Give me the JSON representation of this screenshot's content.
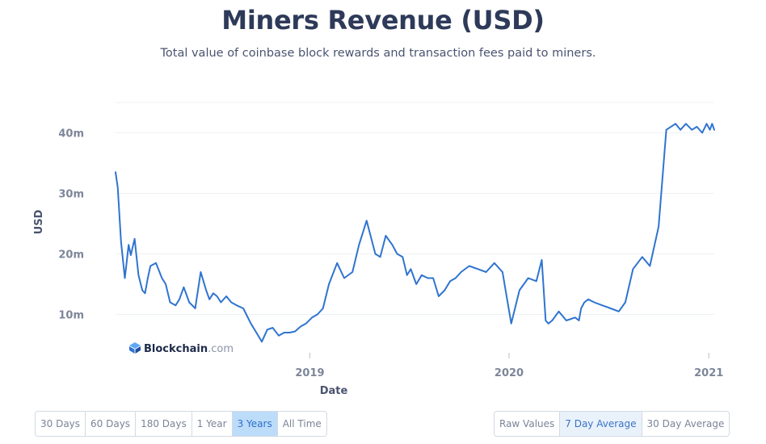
{
  "header": {
    "title": "Miners Revenue (USD)",
    "subtitle": "Total value of coinbase block rewards and transaction fees paid to miners."
  },
  "watermark": {
    "brand_bold": "Blockchain",
    "brand_light": ".com"
  },
  "chart_data": {
    "type": "line",
    "title": "Miners Revenue (USD)",
    "subtitle": "Total value of coinbase block rewards and transaction fees paid to miners.",
    "xlabel": "Date",
    "ylabel": "USD",
    "x_ticks": [
      "2019",
      "2020",
      "2021"
    ],
    "y_ticks": [
      "10m",
      "20m",
      "30m",
      "40m"
    ],
    "ylim": [
      0,
      45000000
    ],
    "grid": true,
    "line_color": "#2f74d0",
    "series": [
      {
        "x": [
          "2018-01-10",
          "2018-01-14",
          "2018-01-20",
          "2018-01-27",
          "2018-02-03",
          "2018-02-07",
          "2018-02-14",
          "2018-02-21",
          "2018-02-28",
          "2018-03-05",
          "2018-03-10",
          "2018-03-15",
          "2018-03-25",
          "2018-04-05",
          "2018-04-12",
          "2018-04-20",
          "2018-04-30",
          "2018-05-07",
          "2018-05-15",
          "2018-05-25",
          "2018-06-05",
          "2018-06-15",
          "2018-06-25",
          "2018-07-01",
          "2018-07-08",
          "2018-07-15",
          "2018-07-22",
          "2018-08-01",
          "2018-08-10",
          "2018-08-20",
          "2018-09-01",
          "2018-09-15",
          "2018-09-25",
          "2018-10-05",
          "2018-10-15",
          "2018-10-25",
          "2018-11-05",
          "2018-11-15",
          "2018-11-25",
          "2018-12-05",
          "2018-12-15",
          "2018-12-25",
          "2019-01-05",
          "2019-01-15",
          "2019-01-25",
          "2019-02-05",
          "2019-02-20",
          "2019-03-05",
          "2019-03-20",
          "2019-04-01",
          "2019-04-15",
          "2019-05-01",
          "2019-05-10",
          "2019-05-20",
          "2019-06-01",
          "2019-06-10",
          "2019-06-20",
          "2019-06-28",
          "2019-07-05",
          "2019-07-15",
          "2019-07-25",
          "2019-08-05",
          "2019-08-15",
          "2019-08-25",
          "2019-09-05",
          "2019-09-15",
          "2019-09-25",
          "2019-10-05",
          "2019-10-20",
          "2019-11-05",
          "2019-11-20",
          "2019-12-05",
          "2019-12-20",
          "2020-01-05",
          "2020-01-20",
          "2020-02-05",
          "2020-02-20",
          "2020-03-01",
          "2020-03-08",
          "2020-03-13",
          "2020-03-20",
          "2020-04-01",
          "2020-04-15",
          "2020-05-01",
          "2020-05-08",
          "2020-05-12",
          "2020-05-18",
          "2020-05-25",
          "2020-06-05",
          "2020-06-20",
          "2020-07-05",
          "2020-07-20",
          "2020-08-01",
          "2020-08-15",
          "2020-09-01",
          "2020-09-15",
          "2020-10-01",
          "2020-10-15",
          "2020-11-01",
          "2020-11-10",
          "2020-11-20",
          "2020-12-01",
          "2020-12-10",
          "2020-12-20",
          "2020-12-28",
          "2021-01-03",
          "2021-01-07",
          "2021-01-11"
        ],
        "values": [
          33500000,
          31000000,
          22000000,
          16000000,
          21500000,
          19800000,
          22500000,
          16500000,
          14000000,
          13500000,
          16000000,
          18000000,
          18500000,
          16000000,
          15000000,
          12000000,
          11500000,
          12500000,
          14500000,
          12000000,
          11000000,
          17000000,
          14000000,
          12500000,
          13500000,
          13000000,
          12000000,
          13000000,
          12000000,
          11500000,
          11000000,
          8500000,
          7000000,
          5500000,
          7500000,
          7800000,
          6500000,
          7000000,
          7000000,
          7200000,
          8000000,
          8500000,
          9500000,
          10000000,
          11000000,
          15000000,
          18500000,
          16000000,
          17000000,
          21500000,
          25500000,
          20000000,
          19500000,
          23000000,
          21500000,
          20000000,
          19500000,
          16500000,
          17500000,
          15000000,
          16500000,
          16000000,
          16000000,
          13000000,
          14000000,
          15500000,
          16000000,
          17000000,
          18000000,
          17500000,
          17000000,
          18500000,
          17000000,
          8500000,
          14000000,
          16000000,
          15500000,
          19000000,
          9000000,
          8500000,
          9000000,
          10500000,
          9000000,
          9500000,
          9000000,
          11000000,
          12000000,
          12500000,
          12000000,
          11500000,
          11000000,
          10500000,
          12000000,
          17500000,
          19500000,
          18000000,
          24500000,
          40500000,
          41500000,
          40500000,
          41500000,
          40500000,
          41000000,
          40000000,
          41500000,
          40500000,
          41500000,
          40500000
        ]
      }
    ]
  },
  "controls": {
    "range_buttons": [
      "30 Days",
      "60 Days",
      "180 Days",
      "1 Year",
      "3 Years",
      "All Time"
    ],
    "range_active": "3 Years",
    "avg_buttons": [
      "Raw Values",
      "7 Day Average",
      "30 Day Average"
    ],
    "avg_active": "7 Day Average"
  }
}
